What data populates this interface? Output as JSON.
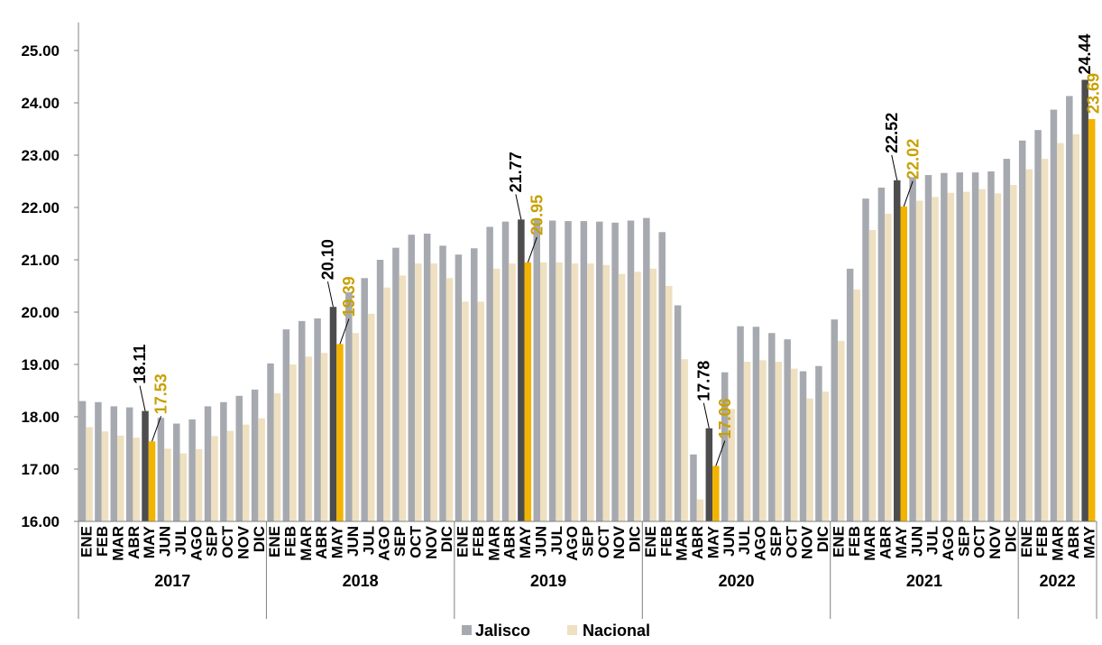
{
  "chart_data": {
    "type": "bar",
    "ylim": [
      16,
      25.5
    ],
    "yticks": [
      "16.00",
      "17.00",
      "18.00",
      "19.00",
      "20.00",
      "21.00",
      "22.00",
      "23.00",
      "24.00",
      "25.00"
    ],
    "grid": false,
    "legend_position": "bottom",
    "years": [
      {
        "label": "2017",
        "months": 12
      },
      {
        "label": "2018",
        "months": 12
      },
      {
        "label": "2019",
        "months": 12
      },
      {
        "label": "2020",
        "months": 12
      },
      {
        "label": "2021",
        "months": 12
      },
      {
        "label": "2022",
        "months": 5
      }
    ],
    "categories": [
      "ENE",
      "FEB",
      "MAR",
      "ABR",
      "MAY",
      "JUN",
      "JUL",
      "AGO",
      "SEP",
      "OCT",
      "NOV",
      "DIC",
      "ENE",
      "FEB",
      "MAR",
      "ABR",
      "MAY",
      "JUN",
      "JUL",
      "AGO",
      "SEP",
      "OCT",
      "NOV",
      "DIC",
      "ENE",
      "FEB",
      "MAR",
      "ABR",
      "MAY",
      "JUN",
      "JUL",
      "AGO",
      "SEP",
      "OCT",
      "NOV",
      "DIC",
      "ENE",
      "FEB",
      "MAR",
      "ABR",
      "MAY",
      "JUN",
      "JUL",
      "AGO",
      "SEP",
      "OCT",
      "NOV",
      "DIC",
      "ENE",
      "FEB",
      "MAR",
      "ABR",
      "MAY",
      "JUN",
      "JUL",
      "AGO",
      "SEP",
      "OCT",
      "NOV",
      "DIC",
      "ENE",
      "FEB",
      "MAR",
      "ABR",
      "MAY"
    ],
    "series": [
      {
        "name": "Jalisco",
        "color": "#a6aab0",
        "highlight_color": "#4d4d4d",
        "label_color": "#000000",
        "values": [
          18.3,
          18.28,
          18.2,
          18.18,
          18.11,
          17.98,
          17.87,
          17.95,
          18.2,
          18.28,
          18.4,
          18.52,
          19.02,
          19.67,
          19.83,
          19.88,
          20.1,
          20.38,
          20.65,
          21.0,
          21.23,
          21.48,
          21.5,
          21.27,
          21.1,
          21.22,
          21.63,
          21.73,
          21.77,
          21.77,
          21.75,
          21.74,
          21.74,
          21.73,
          21.71,
          21.75,
          21.8,
          21.53,
          20.13,
          17.28,
          17.78,
          18.85,
          19.73,
          19.72,
          19.6,
          19.48,
          18.87,
          18.97,
          19.86,
          20.83,
          22.17,
          22.38,
          22.52,
          22.58,
          22.62,
          22.66,
          22.67,
          22.67,
          22.69,
          22.93,
          23.28,
          23.48,
          23.87,
          24.13,
          24.44
        ]
      },
      {
        "name": "Nacional",
        "color": "#eee0c0",
        "highlight_color": "#f2b400",
        "label_color": "#c8a000",
        "values": [
          17.8,
          17.72,
          17.64,
          17.6,
          17.53,
          17.39,
          17.3,
          17.38,
          17.63,
          17.73,
          17.85,
          17.97,
          18.45,
          19.0,
          19.15,
          19.22,
          19.39,
          19.6,
          19.97,
          20.47,
          20.7,
          20.93,
          20.93,
          20.65,
          20.2,
          20.2,
          20.83,
          20.93,
          20.95,
          20.95,
          20.95,
          20.93,
          20.93,
          20.9,
          20.73,
          20.77,
          20.83,
          20.5,
          19.1,
          16.42,
          17.06,
          18.15,
          19.05,
          19.08,
          19.05,
          18.92,
          18.35,
          18.48,
          19.45,
          20.43,
          21.57,
          21.88,
          22.02,
          22.13,
          22.2,
          22.28,
          22.3,
          22.35,
          22.27,
          22.43,
          22.73,
          22.93,
          23.23,
          23.4,
          23.69
        ]
      }
    ],
    "highlight_indices": [
      4,
      16,
      28,
      40,
      52,
      64
    ],
    "data_labels": [
      {
        "index": 4,
        "jalisco": "18.11",
        "nacional": "17.53"
      },
      {
        "index": 16,
        "jalisco": "20.10",
        "nacional": "19.39"
      },
      {
        "index": 28,
        "jalisco": "21.77",
        "nacional": "20.95"
      },
      {
        "index": 40,
        "jalisco": "17.78",
        "nacional": "17.06"
      },
      {
        "index": 52,
        "jalisco": "22.52",
        "nacional": "22.02"
      },
      {
        "index": 64,
        "jalisco": "24.44",
        "nacional": "23.69"
      }
    ]
  },
  "legend": {
    "items": [
      {
        "label": "Jalisco",
        "color": "#a6aab0"
      },
      {
        "label": "Nacional",
        "color": "#eee0c0"
      }
    ]
  }
}
